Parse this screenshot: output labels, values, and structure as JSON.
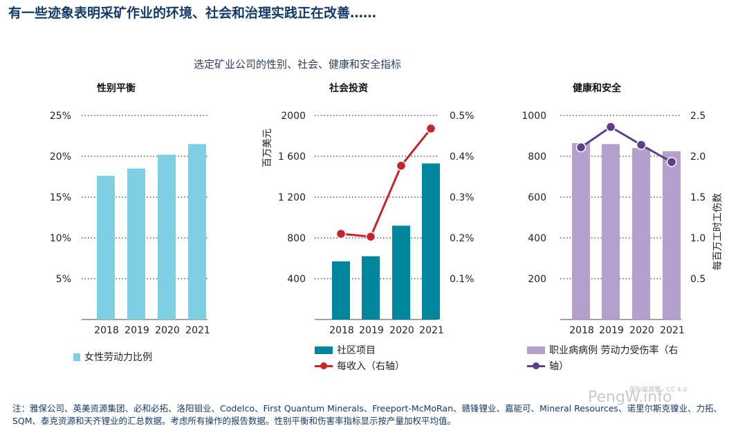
{
  "title": "有一些迹象表明采矿作业的环境、社会和治理实践正在改善……",
  "subtitle": "选定矿业公司的性别、社会、健康和安全指标",
  "chart_data": [
    {
      "type": "bar",
      "title": "性别平衡",
      "categories": [
        "2018",
        "2019",
        "2020",
        "2021"
      ],
      "series": [
        {
          "name": "女性劳动力比例",
          "color": "#7ecfe3",
          "values": [
            17.6,
            18.5,
            20.2,
            21.5
          ]
        }
      ],
      "ylim": [
        0,
        25
      ],
      "yticks": [
        "5%",
        "10%",
        "15%",
        "20%",
        "25%"
      ],
      "ytick_values": [
        5,
        10,
        15,
        20,
        25
      ],
      "legend": "bottom"
    },
    {
      "type": "bar+line",
      "title": "社会投资",
      "categories": [
        "2018",
        "2019",
        "2020",
        "2021"
      ],
      "ylabel": "百万美元",
      "ylim": [
        0,
        2000
      ],
      "yticks": [
        "400",
        "800",
        "1 200",
        "1 600",
        "2000"
      ],
      "ytick_values": [
        400,
        800,
        1200,
        1600,
        2000
      ],
      "y2lim": [
        0,
        0.5
      ],
      "y2ticks": [
        "0.1%",
        "0.2%",
        "0.3%",
        "0.4%",
        "0.5%"
      ],
      "y2tick_values": [
        0.1,
        0.2,
        0.3,
        0.4,
        0.5
      ],
      "series": [
        {
          "name": "社区项目",
          "type": "bar",
          "color": "#00879e",
          "values": [
            570,
            620,
            920,
            1530
          ]
        },
        {
          "name": "每收入（右轴",
          "type": "line",
          "axis": "right",
          "color": "#c8232c",
          "values": [
            0.21,
            0.203,
            0.377,
            0.468
          ]
        }
      ],
      "legend": "bottom"
    },
    {
      "type": "bar+line",
      "title": "健康和安全",
      "categories": [
        "2018",
        "2019",
        "2020",
        "2021"
      ],
      "ylim": [
        0,
        1000
      ],
      "yticks": [
        "200",
        "400",
        "600",
        "800",
        "1000"
      ],
      "ytick_values": [
        200,
        400,
        600,
        800,
        1000
      ],
      "y2label": "每百万工时工伤数",
      "y2lim": [
        0,
        2.5
      ],
      "y2ticks": [
        "0.5",
        "1.0",
        "1.5",
        "2.0",
        "2.5"
      ],
      "y2tick_values": [
        0.5,
        1.0,
        1.5,
        2.0,
        2.5
      ],
      "series": [
        {
          "name": "职业病病例",
          "type": "bar",
          "color": "#b3a0cc",
          "values": [
            865,
            860,
            840,
            825
          ]
        },
        {
          "name": "劳动力受伤率（右轴）",
          "type": "line",
          "axis": "right",
          "color": "#5b3f87",
          "values": [
            2.11,
            2.36,
            2.14,
            1.93
          ]
        }
      ],
      "legend": "bottom"
    }
  ],
  "legend_texts": {
    "p1": "女性劳动力比例",
    "p2_bar": "社区项目",
    "p2_line": "每收入（右轴）",
    "p3_bar": "职业病病例 劳动力受伤率（右",
    "p3_line": "轴）"
  },
  "footnote": "注：雅保公司、英美资源集团、必和必拓、洛阳钼业、Codelco、First Quantum Minerals、Freeport-McMoRan、赣锋锂业、嘉能可、Mineral Resources、诺里尔斯克镍业、力拓、SQM、泰克资源和天齐锂业的汇总数据。考虑所有操作的报告数据。性别平衡和伤害率指标显示按产量加权平均值。",
  "watermark": "PengW.info",
  "watermark_small": "国际能源署 · CC 4.0"
}
